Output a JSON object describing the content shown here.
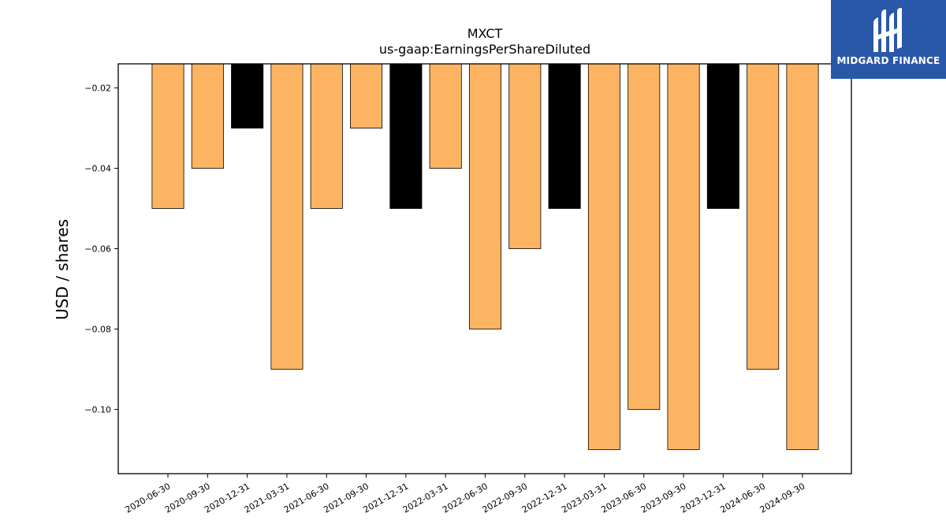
{
  "brand": {
    "name": "MIDGARD FINANCE",
    "bg_color": "#2a58a8"
  },
  "chart_data": {
    "type": "bar",
    "title": "MXCT",
    "subtitle": "us-gaap:EarningsPerShareDiluted",
    "xlabel": "",
    "ylabel": "USD / shares",
    "categories": [
      "2020-06-30",
      "2020-09-30",
      "2020-12-31",
      "2021-03-31",
      "2021-06-30",
      "2021-09-30",
      "2021-12-31",
      "2022-03-31",
      "2022-06-30",
      "2022-09-30",
      "2022-12-31",
      "2023-03-31",
      "2023-06-30",
      "2023-09-30",
      "2023-12-31",
      "2024-06-30",
      "2024-09-30"
    ],
    "values": [
      -0.05,
      -0.04,
      -0.03,
      -0.09,
      -0.05,
      -0.03,
      -0.05,
      -0.04,
      -0.08,
      -0.06,
      -0.05,
      -0.11,
      -0.1,
      -0.11,
      -0.05,
      -0.09,
      -0.11
    ],
    "bar_colors": [
      "#fdb462",
      "#fdb462",
      "#000000",
      "#fdb462",
      "#fdb462",
      "#fdb462",
      "#000000",
      "#fdb462",
      "#fdb462",
      "#fdb462",
      "#000000",
      "#fdb462",
      "#fdb462",
      "#fdb462",
      "#000000",
      "#fdb462",
      "#fdb462"
    ],
    "ylim": [
      -0.116,
      -0.014
    ],
    "yticks": [
      -0.02,
      -0.04,
      -0.06,
      -0.08,
      -0.1
    ],
    "ytick_labels": [
      "−0.02",
      "−0.04",
      "−0.06",
      "−0.08",
      "−0.10"
    ],
    "grid": false,
    "legend": "none"
  }
}
